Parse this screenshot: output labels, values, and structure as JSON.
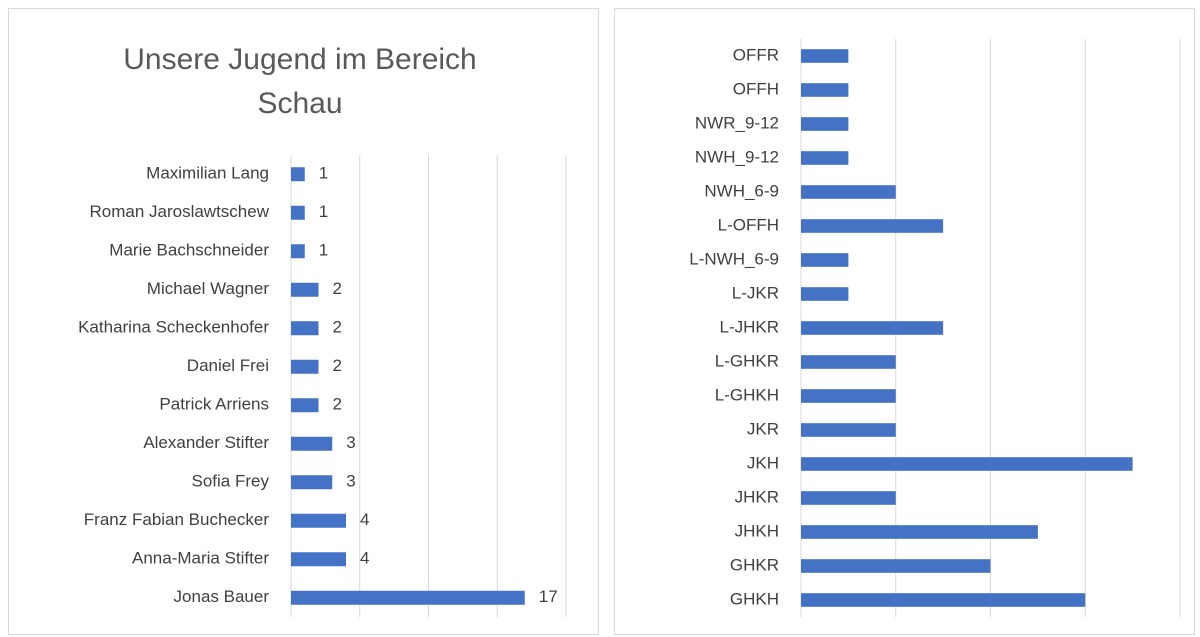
{
  "chart_data": [
    {
      "type": "barh",
      "title": "Unsere Jugend im Bereich Schau",
      "categories": [
        "Maximilian Lang",
        "Roman Jaroslawtschew",
        "Marie Bachschneider",
        "Michael Wagner",
        "Katharina Scheckenhofer",
        "Daniel Frei",
        "Patrick Arriens",
        "Alexander Stifter",
        "Sofia Frey",
        "Franz Fabian Buchecker",
        "Anna-Maria Stifter",
        "Jonas Bauer"
      ],
      "values": [
        1,
        1,
        1,
        2,
        2,
        2,
        2,
        3,
        3,
        4,
        4,
        17
      ],
      "color": "#4472c4",
      "xlim": [
        0,
        20
      ],
      "xticks": [
        0,
        5,
        10,
        15,
        20
      ],
      "grid": true,
      "data_labels": true
    },
    {
      "type": "barh",
      "categories": [
        "OFFR",
        "OFFH",
        "NWR_9-12",
        "NWH_9-12",
        "NWH_6-9",
        "L-OFFH",
        "L-NWH_6-9",
        "L-JKR",
        "L-JHKR",
        "L-GHKR",
        "L-GHKH",
        "JKR",
        "JKH",
        "JHKR",
        "JHKH",
        "GHKR",
        "GHKH"
      ],
      "values": [
        1,
        1,
        1,
        1,
        2,
        3,
        1,
        1,
        3,
        2,
        2,
        2,
        7,
        2,
        5,
        4,
        6
      ],
      "color": "#4472c4",
      "xlim": [
        0,
        8
      ],
      "xticks": [
        0,
        2,
        4,
        6,
        8
      ],
      "grid": true,
      "data_labels": false
    }
  ]
}
